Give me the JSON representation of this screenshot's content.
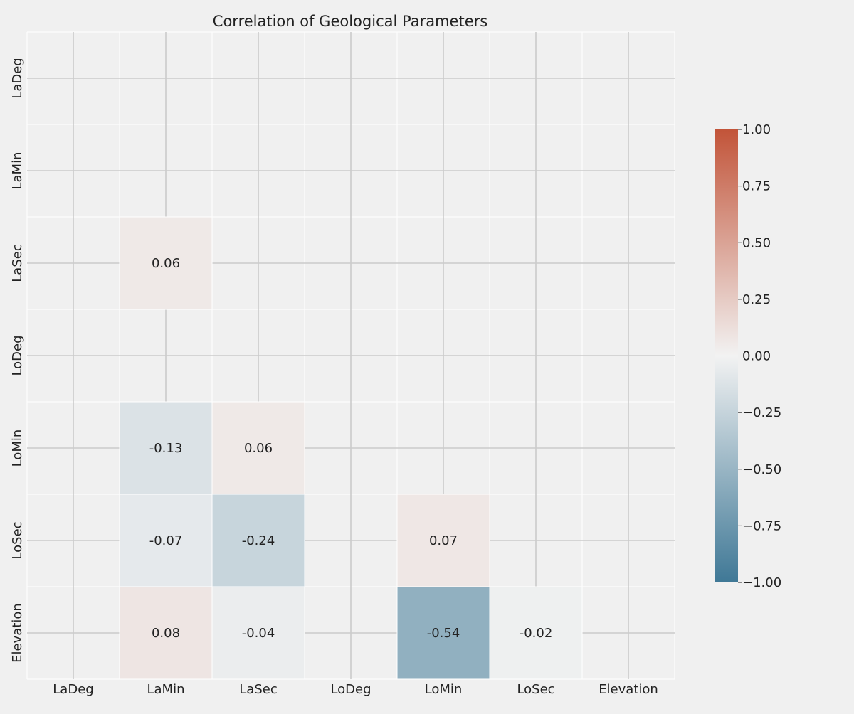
{
  "chart_data": {
    "type": "heatmap",
    "title": "Correlation of Geological Parameters",
    "variables": [
      "LaDeg",
      "LaMin",
      "LaSec",
      "LoDeg",
      "LoMin",
      "LoSec",
      "Elevation"
    ],
    "mask": "upper-triangle-and-diagonal",
    "matrix": [
      [
        null,
        null,
        null,
        null,
        null,
        null,
        null
      ],
      [
        null,
        null,
        null,
        null,
        null,
        null,
        null
      ],
      [
        null,
        0.06,
        null,
        null,
        null,
        null,
        null
      ],
      [
        null,
        null,
        null,
        null,
        null,
        null,
        null
      ],
      [
        null,
        -0.13,
        0.06,
        null,
        null,
        null,
        null
      ],
      [
        null,
        -0.07,
        -0.24,
        null,
        0.07,
        null,
        null
      ],
      [
        null,
        0.08,
        -0.04,
        null,
        -0.54,
        -0.02,
        null
      ]
    ],
    "annotation_format": "0.00",
    "grid": true,
    "colorbar": {
      "location": "right",
      "range": [
        -1.0,
        1.0
      ],
      "ticks": [
        "1.00",
        "0.75",
        "0.50",
        "0.25",
        "0.00",
        "−0.25",
        "−0.50",
        "−0.75",
        "−1.00"
      ],
      "tick_values": [
        1.0,
        0.75,
        0.5,
        0.25,
        0.0,
        -0.25,
        -0.5,
        -0.75,
        -1.0
      ],
      "colors": {
        "negative": "#3f7896",
        "center": "#f2f2f2",
        "positive": "#c25439"
      }
    },
    "colors": {
      "background": "#f0f0f0",
      "gridline": "#cbcbcb",
      "cell_border": "#ffffff",
      "text": "#222222"
    }
  }
}
